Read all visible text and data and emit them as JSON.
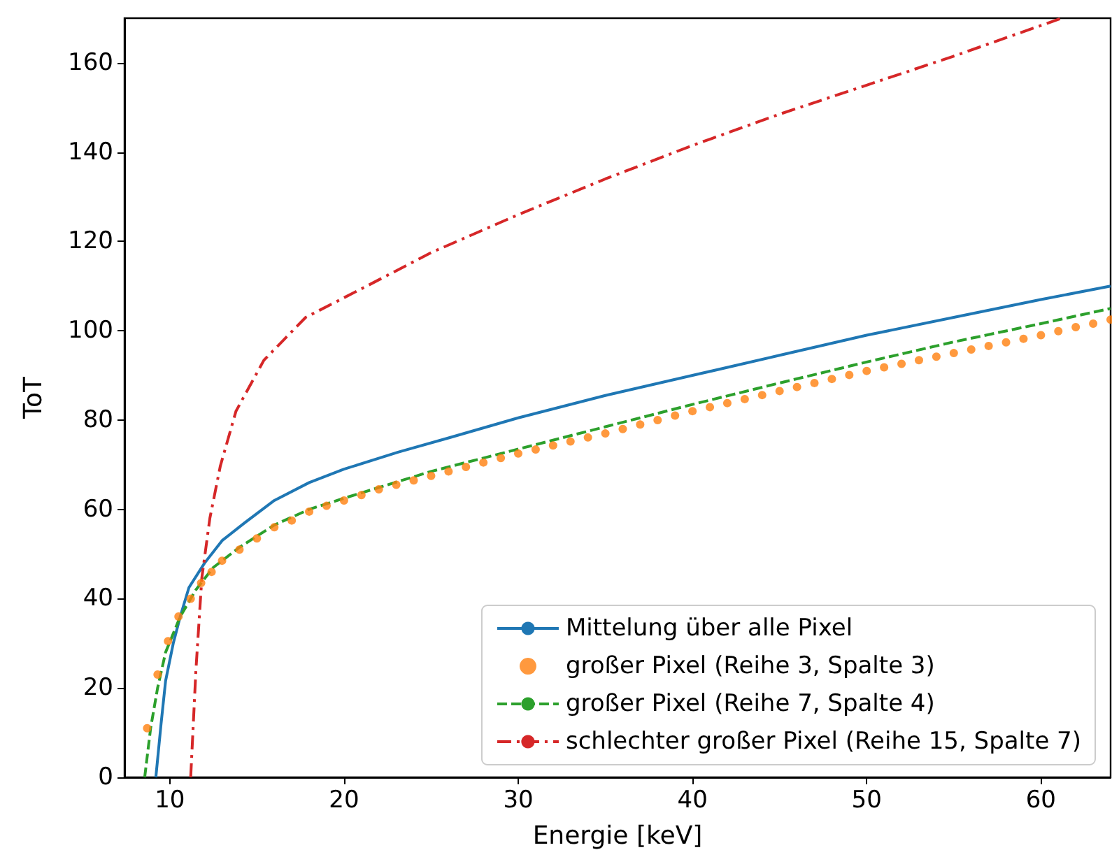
{
  "chart_data": {
    "type": "line",
    "xlabel": "Energie [keV]",
    "ylabel": "ToT",
    "xlim": [
      7.4,
      64
    ],
    "ylim": [
      0,
      170
    ],
    "xticks": [
      10,
      20,
      30,
      40,
      50,
      60
    ],
    "yticks": [
      0,
      20,
      40,
      60,
      80,
      100,
      120,
      140,
      160
    ],
    "grid": false,
    "legend": "bottom right",
    "series": [
      {
        "name": "Mittelung über alle Pixel",
        "color": "#1f77b4",
        "line_style": "solid",
        "marker": "none",
        "x": [
          9.2,
          9.5,
          9.76,
          10.2,
          10.6,
          11.1,
          12,
          13,
          14.3,
          16,
          18,
          20,
          23.1,
          26,
          30,
          35,
          40,
          45,
          50,
          55,
          60,
          64
        ],
        "values": [
          0,
          12,
          21.6,
          30,
          36,
          42.5,
          48,
          53,
          57,
          62,
          66,
          69,
          72.8,
          76,
          80.5,
          85.5,
          90,
          94.5,
          99,
          103,
          107,
          110
        ]
      },
      {
        "name": "großer Pixel (Reihe 3, Spalte 3)",
        "type": "scatter",
        "color": "#ff7f0e",
        "marker": "circle",
        "x": [
          8.7,
          9.3,
          9.9,
          10.5,
          11.2,
          11.8,
          12.4,
          13,
          14,
          15,
          16,
          17,
          18,
          19,
          20,
          21,
          22,
          23,
          24,
          25,
          26,
          27,
          28,
          29,
          30,
          31,
          32,
          33,
          34,
          35,
          36,
          37,
          38,
          39,
          40,
          41,
          42,
          43,
          44,
          45,
          46,
          47,
          48,
          49,
          50,
          51,
          52,
          53,
          54,
          55,
          56,
          57,
          58,
          59,
          60,
          61,
          62,
          63,
          64
        ],
        "values": [
          11,
          23,
          30.5,
          36,
          40,
          43.5,
          46,
          48.5,
          51,
          53.5,
          56,
          57.5,
          59.5,
          60.8,
          62,
          63.2,
          64.5,
          65.5,
          66.5,
          67.5,
          68.5,
          69.5,
          70.5,
          71.5,
          72.5,
          73.4,
          74.3,
          75.2,
          76.1,
          77,
          78,
          79,
          80,
          81,
          82,
          82.9,
          83.8,
          84.7,
          85.6,
          86.5,
          87.4,
          88.3,
          89.2,
          90.1,
          91,
          91.8,
          92.6,
          93.4,
          94.2,
          95,
          95.8,
          96.6,
          97.4,
          98.2,
          99,
          99.9,
          100.8,
          101.6,
          102.5
        ]
      },
      {
        "name": "großer Pixel (Reihe 7, Spalte 4)",
        "color": "#2ca02c",
        "line_style": "dashed",
        "marker": "none",
        "x": [
          8.56,
          8.9,
          9.3,
          9.76,
          10.6,
          11.5,
          12.5,
          14,
          16,
          18,
          20,
          25,
          30,
          35,
          40,
          45,
          50,
          55,
          60,
          64
        ],
        "values": [
          0,
          11,
          20,
          28,
          36,
          42,
          47,
          51.5,
          56.5,
          60,
          62.5,
          68.5,
          73.5,
          78.5,
          83.5,
          88.3,
          93,
          97.5,
          101.6,
          105
        ]
      },
      {
        "name": "schlechter großer Pixel (Reihe 15, Spalte 7)",
        "color": "#d62728",
        "line_style": "dashdot",
        "marker": "none",
        "x": [
          11.2,
          11.35,
          11.5,
          11.84,
          12.3,
          12.9,
          13.8,
          15.4,
          17.8,
          21.3,
          25,
          30,
          35,
          40,
          45,
          50,
          55,
          61.2
        ],
        "values": [
          0,
          12,
          24,
          44.7,
          58,
          69.7,
          82,
          93.4,
          103,
          110,
          117.5,
          126,
          134,
          141.5,
          148.5,
          155,
          161.5,
          170
        ]
      }
    ]
  }
}
